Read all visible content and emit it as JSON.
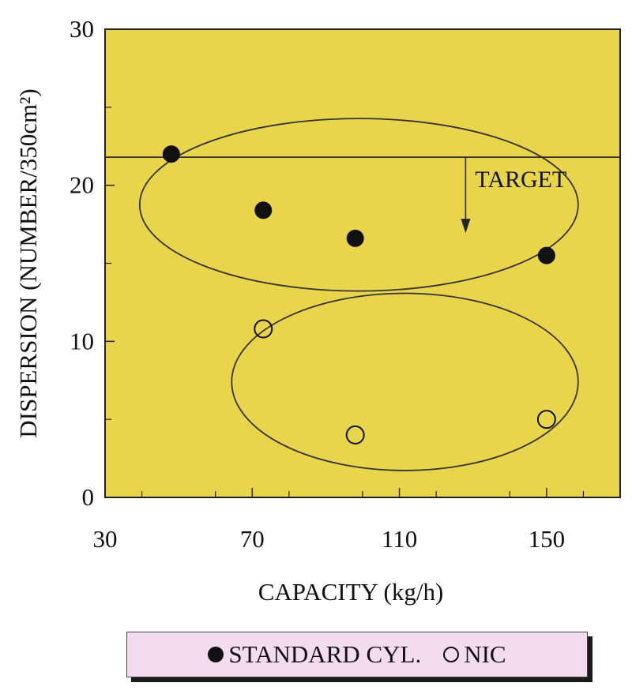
{
  "chart_data": {
    "type": "scatter",
    "xlabel": "CAPACITY (kg/h)",
    "ylabel": "DISPERSION (NUMBER/350cm²)",
    "xlim": [
      30,
      170
    ],
    "ylim": [
      0,
      30
    ],
    "xticks": [
      30,
      70,
      110,
      150
    ],
    "yticks": [
      0,
      10,
      20,
      30
    ],
    "grid": false,
    "background_color": "#e9d54b",
    "series": [
      {
        "name": "STANDARD CYL.",
        "marker": "filled-circle",
        "color": "#111111",
        "x": [
          48,
          73,
          98,
          150
        ],
        "y": [
          22.0,
          18.4,
          16.6,
          15.5
        ]
      },
      {
        "name": "NIC",
        "marker": "hollow-circle",
        "color": "#111111",
        "x": [
          73,
          98,
          150
        ],
        "y": [
          10.8,
          4.0,
          5.0
        ]
      }
    ],
    "reference_line": {
      "y": 21.8,
      "label": "TARGET"
    },
    "annotations": [
      {
        "text": "TARGET",
        "arrow": "down",
        "x": 128
      }
    ]
  },
  "legend": {
    "items": [
      {
        "label": "STANDARD CYL.",
        "marker": "filled"
      },
      {
        "label": "NIC",
        "marker": "hollow"
      }
    ]
  }
}
